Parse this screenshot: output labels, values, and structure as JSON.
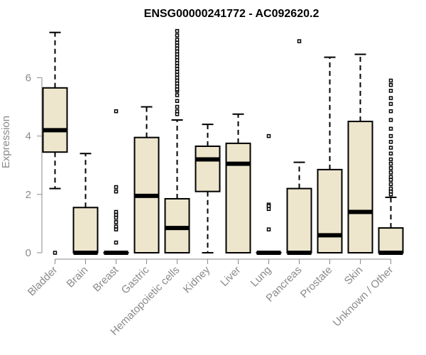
{
  "chart_data": {
    "type": "box",
    "title": "ENSG00000241772 - AC092620.2",
    "xlabel": "",
    "ylabel": "Expression",
    "ylim": [
      0,
      7.7
    ],
    "yticks": [
      0,
      2,
      4,
      6
    ],
    "box_color": "#ede6cc",
    "line_color": "#000000",
    "axis_color": "#8a8a8a",
    "categories": [
      "Bladder",
      "Brain",
      "Breast",
      "Gastric",
      "Hematopoietic cells",
      "Kidney",
      "Liver",
      "Lung",
      "Pancreas",
      "Prostate",
      "Skin",
      "Unknown / Other"
    ],
    "boxes": [
      {
        "name": "Bladder",
        "whisker_low": 2.2,
        "q1": 3.45,
        "median": 4.2,
        "q3": 5.65,
        "whisker_high": 7.55,
        "outliers": [
          0
        ]
      },
      {
        "name": "Brain",
        "whisker_low": 0,
        "q1": 0,
        "median": 0,
        "q3": 1.55,
        "whisker_high": 3.4,
        "outliers": []
      },
      {
        "name": "Breast",
        "whisker_low": 0,
        "q1": 0,
        "median": 0,
        "q3": 0,
        "whisker_high": 0,
        "outliers": [
          4.85,
          2.25,
          2.1,
          1.4,
          1.3,
          1.2,
          1.05,
          0.9,
          0.8,
          0.35
        ]
      },
      {
        "name": "Gastric",
        "whisker_low": 0,
        "q1": 0,
        "median": 1.95,
        "q3": 3.95,
        "whisker_high": 5.0,
        "outliers": []
      },
      {
        "name": "Hematopoietic cells",
        "whisker_low": 0,
        "q1": 0,
        "median": 0.85,
        "q3": 1.85,
        "whisker_high": 4.55,
        "outliers": [
          4.75,
          4.85,
          5.0,
          5.2,
          5.4,
          5.55,
          5.6,
          5.7,
          5.8,
          5.9,
          6.0,
          6.1,
          6.2,
          6.3,
          6.4,
          6.5,
          6.6,
          6.7,
          6.8,
          6.9,
          7.0,
          7.1,
          7.2,
          7.3,
          7.45,
          7.6
        ]
      },
      {
        "name": "Kidney",
        "whisker_low": 0,
        "q1": 2.1,
        "median": 3.2,
        "q3": 3.65,
        "whisker_high": 4.4,
        "outliers": []
      },
      {
        "name": "Liver",
        "whisker_low": 0,
        "q1": 0,
        "median": 3.05,
        "q3": 3.75,
        "whisker_high": 4.75,
        "outliers": []
      },
      {
        "name": "Lung",
        "whisker_low": 0,
        "q1": 0,
        "median": 0,
        "q3": 0,
        "whisker_high": 0,
        "outliers": [
          4.0,
          1.65,
          1.6,
          1.5,
          0.8
        ]
      },
      {
        "name": "Pancreas",
        "whisker_low": 0,
        "q1": 0,
        "median": 0,
        "q3": 2.2,
        "whisker_high": 3.1,
        "outliers": [
          7.25
        ]
      },
      {
        "name": "Prostate",
        "whisker_low": 0,
        "q1": 0,
        "median": 0.6,
        "q3": 2.85,
        "whisker_high": 6.7,
        "outliers": []
      },
      {
        "name": "Skin",
        "whisker_low": 0,
        "q1": 0,
        "median": 1.4,
        "q3": 4.5,
        "whisker_high": 6.8,
        "outliers": []
      },
      {
        "name": "Unknown / Other",
        "whisker_low": 0,
        "q1": 0,
        "median": 0,
        "q3": 0.85,
        "whisker_high": 1.9,
        "outliers": [
          2.0,
          2.1,
          2.2,
          2.35,
          2.5,
          2.6,
          2.75,
          2.9,
          3.05,
          3.2,
          3.4,
          3.6,
          3.8,
          4.0,
          4.25,
          4.55,
          4.85,
          5.1,
          5.3,
          5.55,
          5.75,
          5.9
        ]
      }
    ]
  }
}
